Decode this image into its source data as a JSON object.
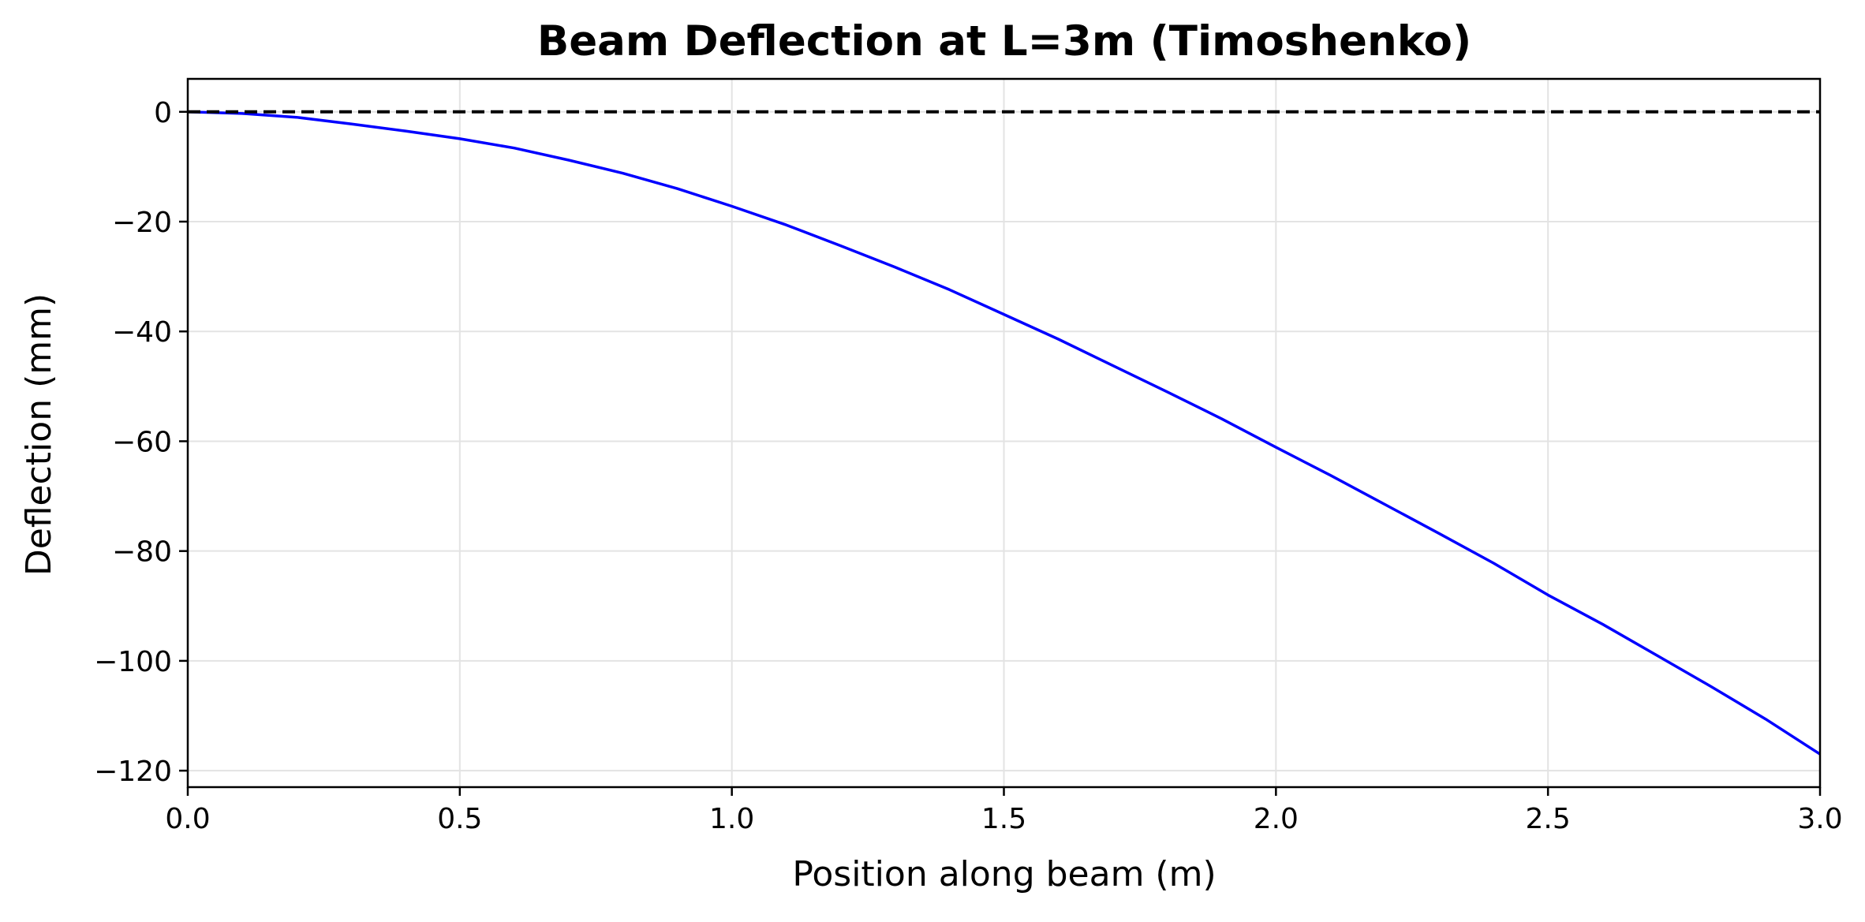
{
  "chart_data": {
    "type": "line",
    "title": "Beam Deflection at L=3m (Timoshenko)",
    "xlabel": "Position along beam (m)",
    "ylabel": "Deflection (mm)",
    "xlim": [
      0.0,
      3.0
    ],
    "ylim": [
      -123,
      6
    ],
    "x_ticks": [
      0.0,
      0.5,
      1.0,
      1.5,
      2.0,
      2.5,
      3.0
    ],
    "x_tick_labels": [
      "0.0",
      "0.5",
      "1.0",
      "1.5",
      "2.0",
      "2.5",
      "3.0"
    ],
    "y_ticks": [
      0,
      -20,
      -40,
      -60,
      -80,
      -100,
      -120
    ],
    "y_tick_labels": [
      "0",
      "−20",
      "−40",
      "−60",
      "−80",
      "−100",
      "−120"
    ],
    "grid": true,
    "series": [
      {
        "role": "deflection",
        "color": "#0000ff",
        "style": "solid",
        "x": [
          0.0,
          0.1,
          0.2,
          0.3,
          0.4,
          0.5,
          0.6,
          0.7,
          0.8,
          0.9,
          1.0,
          1.1,
          1.2,
          1.3,
          1.4,
          1.5,
          1.6,
          1.7,
          1.8,
          1.9,
          2.0,
          2.1,
          2.2,
          2.3,
          2.4,
          2.5,
          2.6,
          2.7,
          2.8,
          2.9,
          3.0
        ],
        "y": [
          0.0,
          -0.3,
          -1.0,
          -2.2,
          -3.5,
          -4.9,
          -6.6,
          -8.8,
          -11.2,
          -14.0,
          -17.2,
          -20.6,
          -24.4,
          -28.3,
          -32.4,
          -36.9,
          -41.4,
          -46.2,
          -51.0,
          -55.9,
          -61.1,
          -66.2,
          -71.5,
          -76.8,
          -82.2,
          -88.0,
          -93.3,
          -99.0,
          -104.7,
          -110.6,
          -117.0
        ]
      },
      {
        "role": "baseline",
        "color": "#000000",
        "style": "dashed",
        "x": [
          0.0,
          3.0
        ],
        "y": [
          0,
          0
        ]
      }
    ]
  }
}
